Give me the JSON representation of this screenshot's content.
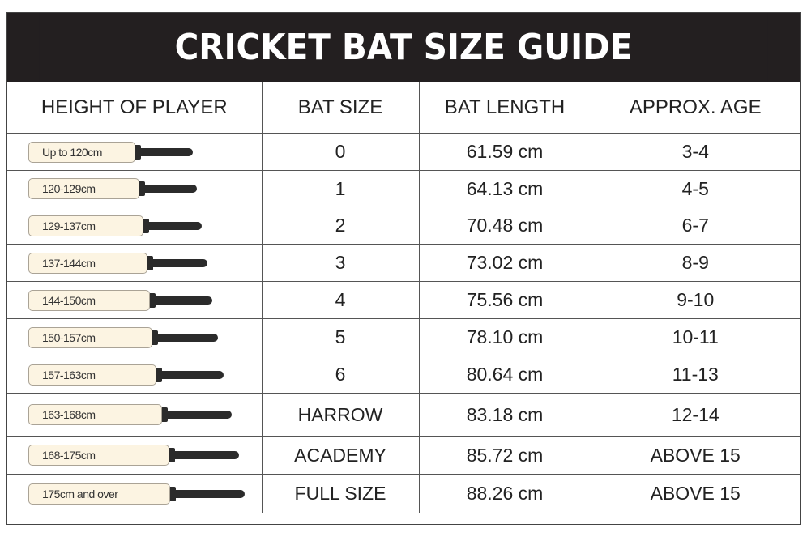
{
  "title": "CRICKET BAT SIZE GUIDE",
  "columns": [
    "HEIGHT OF PLAYER",
    "BAT SIZE",
    "BAT LENGTH",
    "APPROX. AGE"
  ],
  "rows": [
    {
      "height": "Up to 120cm",
      "size": "0",
      "length": "61.59 cm",
      "age": "3-4"
    },
    {
      "height": "120-129cm",
      "size": "1",
      "length": "64.13 cm",
      "age": "4-5"
    },
    {
      "height": "129-137cm",
      "size": "2",
      "length": "70.48 cm",
      "age": "6-7"
    },
    {
      "height": "137-144cm",
      "size": "3",
      "length": "73.02 cm",
      "age": "8-9"
    },
    {
      "height": "144-150cm",
      "size": "4",
      "length": "75.56 cm",
      "age": "9-10"
    },
    {
      "height": "150-157cm",
      "size": "5",
      "length": "78.10 cm",
      "age": "10-11"
    },
    {
      "height": "157-163cm",
      "size": "6",
      "length": "80.64 cm",
      "age": "11-13"
    },
    {
      "height": "163-168cm",
      "size": "HARROW",
      "length": "83.18 cm",
      "age": "12-14"
    },
    {
      "height": "168-175cm",
      "size": "ACADEMY",
      "length": "85.72 cm",
      "age": "ABOVE 15"
    },
    {
      "height": "175cm and over",
      "size": "FULL SIZE",
      "length": "88.26 cm",
      "age": "ABOVE 15"
    }
  ],
  "colors": {
    "title_bg": "#231f20",
    "blade": "#fcf4e2",
    "handle": "#2b2b2b"
  }
}
